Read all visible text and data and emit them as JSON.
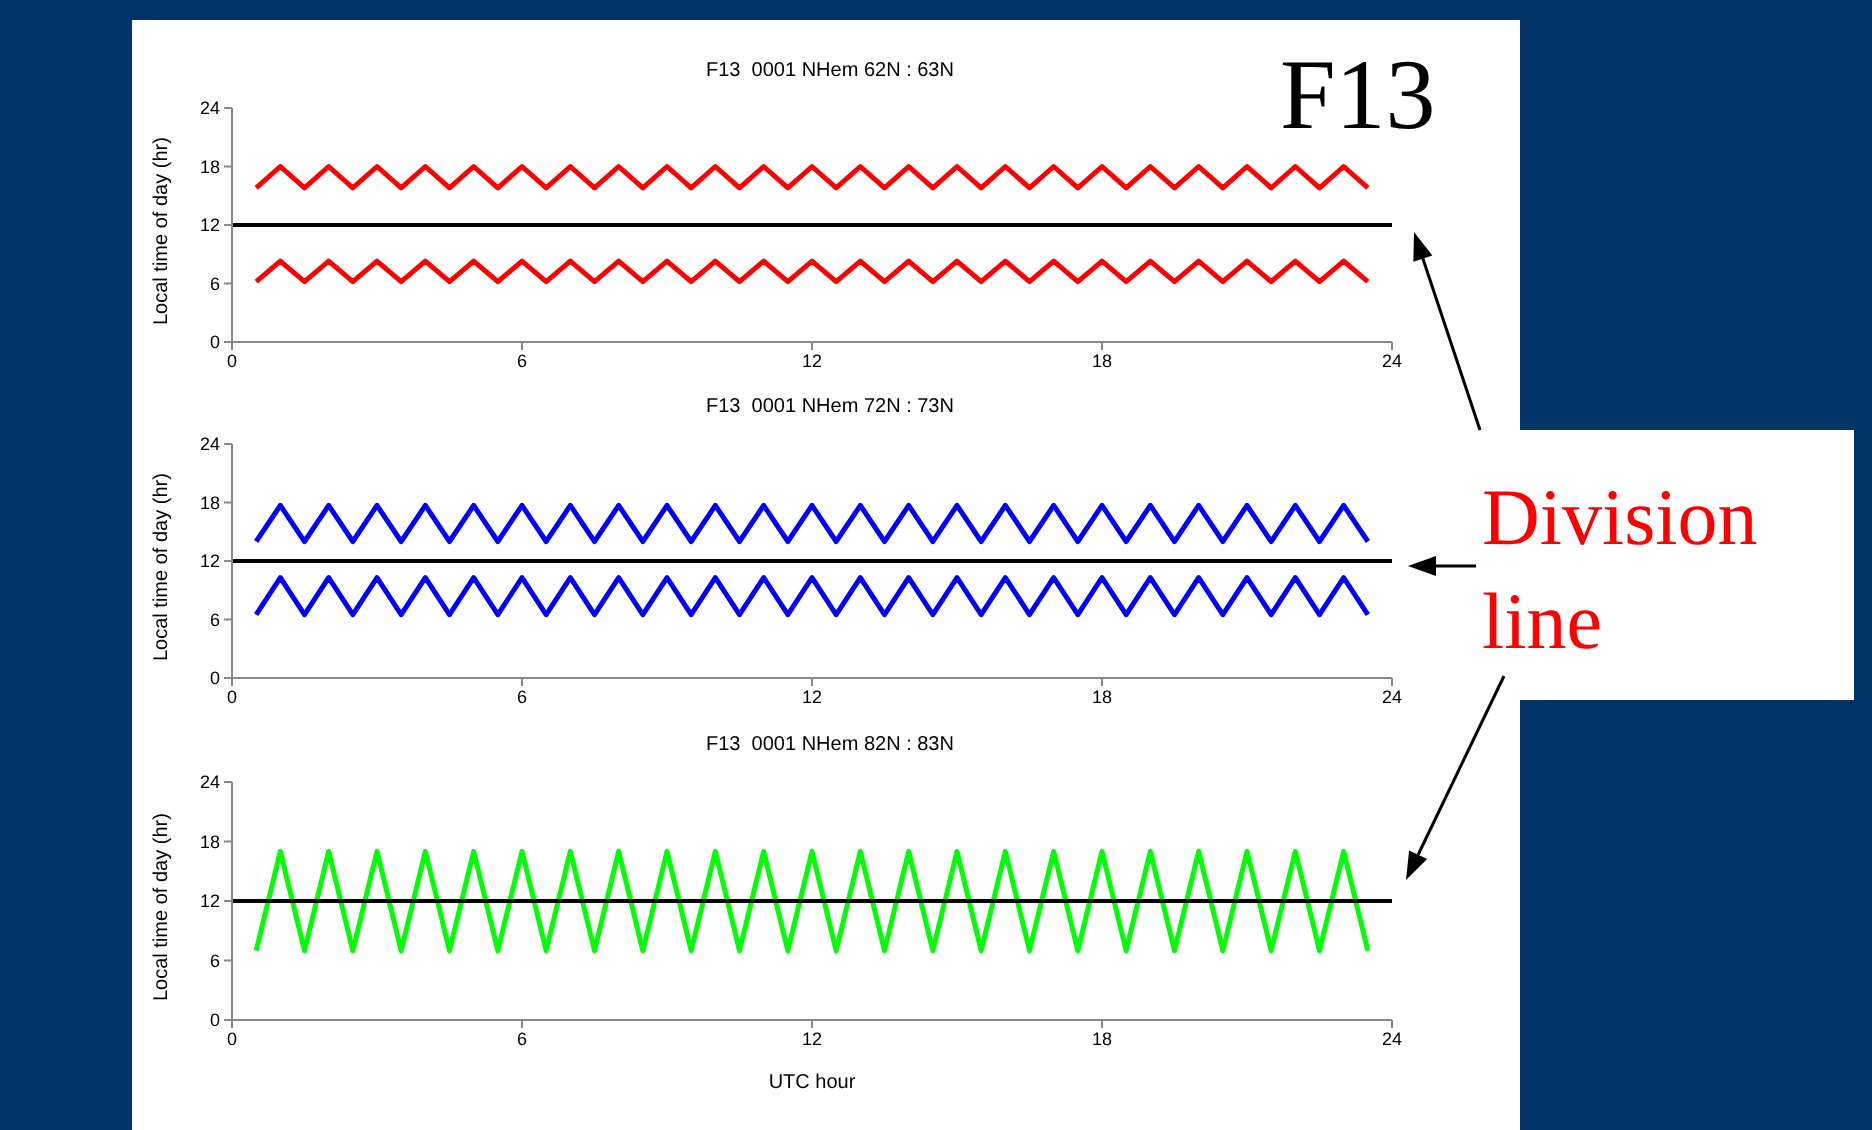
{
  "chart_data": [
    {
      "type": "line",
      "title": "F13  0001 NHem 62N : 63N",
      "ylabel": "Local time of day (hr)",
      "xlim": [
        0,
        24
      ],
      "xticks": [
        0,
        6,
        12,
        18,
        24
      ],
      "ylim": [
        0,
        24
      ],
      "yticks": [
        0,
        6,
        12,
        18,
        24
      ],
      "marker": "none",
      "grid": false,
      "legend": false,
      "x": [
        0.5,
        1,
        1.5,
        2,
        2.5,
        3,
        3.5,
        4,
        4.5,
        5,
        5.5,
        6,
        6.5,
        7,
        7.5,
        8,
        8.5,
        9,
        9.5,
        10,
        10.5,
        11,
        11.5,
        12,
        12.5,
        13,
        13.5,
        14,
        14.5,
        15,
        15.5,
        16,
        16.5,
        17,
        17.5,
        18,
        18.5,
        19,
        19.5,
        20,
        20.5,
        21,
        21.5,
        22,
        22.5,
        23,
        23.5
      ],
      "series": [
        {
          "color": "#ff0000",
          "values": [
            15.8,
            18,
            15.8,
            18,
            15.8,
            18,
            15.8,
            18,
            15.8,
            18,
            15.8,
            18,
            15.8,
            18,
            15.8,
            18,
            15.8,
            18,
            15.8,
            18,
            15.8,
            18,
            15.8,
            18,
            15.8,
            18,
            15.8,
            18,
            15.8,
            18,
            15.8,
            18,
            15.8,
            18,
            15.8,
            18,
            15.8,
            18,
            15.8,
            18,
            15.8,
            18,
            15.8,
            18,
            15.8,
            18,
            15.8
          ]
        },
        {
          "color": "#ff0000",
          "values": [
            6.2,
            8.3,
            6.2,
            8.3,
            6.2,
            8.3,
            6.2,
            8.3,
            6.2,
            8.3,
            6.2,
            8.3,
            6.2,
            8.3,
            6.2,
            8.3,
            6.2,
            8.3,
            6.2,
            8.3,
            6.2,
            8.3,
            6.2,
            8.3,
            6.2,
            8.3,
            6.2,
            8.3,
            6.2,
            8.3,
            6.2,
            8.3,
            6.2,
            8.3,
            6.2,
            8.3,
            6.2,
            8.3,
            6.2,
            8.3,
            6.2,
            8.3,
            6.2,
            8.3,
            6.2,
            8.3,
            6.2
          ]
        }
      ],
      "ref_lines": [
        {
          "axis": "y",
          "value": 12,
          "color": "#000000"
        }
      ],
      "annotations": [
        "F13"
      ]
    },
    {
      "type": "line",
      "title": "F13  0001 NHem 72N : 73N",
      "ylabel": "Local time of day (hr)",
      "xlim": [
        0,
        24
      ],
      "xticks": [
        0,
        6,
        12,
        18,
        24
      ],
      "ylim": [
        0,
        24
      ],
      "yticks": [
        0,
        6,
        12,
        18,
        24
      ],
      "marker": "none",
      "grid": false,
      "legend": false,
      "x": [
        0.5,
        1,
        1.5,
        2,
        2.5,
        3,
        3.5,
        4,
        4.5,
        5,
        5.5,
        6,
        6.5,
        7,
        7.5,
        8,
        8.5,
        9,
        9.5,
        10,
        10.5,
        11,
        11.5,
        12,
        12.5,
        13,
        13.5,
        14,
        14.5,
        15,
        15.5,
        16,
        16.5,
        17,
        17.5,
        18,
        18.5,
        19,
        19.5,
        20,
        20.5,
        21,
        21.5,
        22,
        22.5,
        23,
        23.5
      ],
      "series": [
        {
          "color": "#0000ff",
          "values": [
            14,
            17.7,
            14,
            17.7,
            14,
            17.7,
            14,
            17.7,
            14,
            17.7,
            14,
            17.7,
            14,
            17.7,
            14,
            17.7,
            14,
            17.7,
            14,
            17.7,
            14,
            17.7,
            14,
            17.7,
            14,
            17.7,
            14,
            17.7,
            14,
            17.7,
            14,
            17.7,
            14,
            17.7,
            14,
            17.7,
            14,
            17.7,
            14,
            17.7,
            14,
            17.7,
            14,
            17.7,
            14,
            17.7,
            14
          ]
        },
        {
          "color": "#0000ff",
          "values": [
            6.5,
            10.3,
            6.5,
            10.3,
            6.5,
            10.3,
            6.5,
            10.3,
            6.5,
            10.3,
            6.5,
            10.3,
            6.5,
            10.3,
            6.5,
            10.3,
            6.5,
            10.3,
            6.5,
            10.3,
            6.5,
            10.3,
            6.5,
            10.3,
            6.5,
            10.3,
            6.5,
            10.3,
            6.5,
            10.3,
            6.5,
            10.3,
            6.5,
            10.3,
            6.5,
            10.3,
            6.5,
            10.3,
            6.5,
            10.3,
            6.5,
            10.3,
            6.5,
            10.3,
            6.5,
            10.3,
            6.5
          ]
        }
      ],
      "ref_lines": [
        {
          "axis": "y",
          "value": 12,
          "color": "#000000"
        }
      ],
      "annotations": [
        "Division line"
      ]
    },
    {
      "type": "line",
      "title": "F13  0001 NHem 82N : 83N",
      "xlabel": "UTC hour",
      "ylabel": "Local time of day (hr)",
      "xlim": [
        0,
        24
      ],
      "xticks": [
        0,
        6,
        12,
        18,
        24
      ],
      "ylim": [
        0,
        24
      ],
      "yticks": [
        0,
        6,
        12,
        18,
        24
      ],
      "marker": "none",
      "grid": false,
      "legend": false,
      "x": [
        0.5,
        1,
        1.5,
        2,
        2.5,
        3,
        3.5,
        4,
        4.5,
        5,
        5.5,
        6,
        6.5,
        7,
        7.5,
        8,
        8.5,
        9,
        9.5,
        10,
        10.5,
        11,
        11.5,
        12,
        12.5,
        13,
        13.5,
        14,
        14.5,
        15,
        15.5,
        16,
        16.5,
        17,
        17.5,
        18,
        18.5,
        19,
        19.5,
        20,
        20.5,
        21,
        21.5,
        22,
        22.5,
        23,
        23.5
      ],
      "series": [
        {
          "color": "#00ff00",
          "values": [
            7,
            17,
            7,
            17,
            7,
            17,
            7,
            17,
            7,
            17,
            7,
            17,
            7,
            17,
            7,
            17,
            7,
            17,
            7,
            17,
            7,
            17,
            7,
            17,
            7,
            17,
            7,
            17,
            7,
            17,
            7,
            17,
            7,
            17,
            7,
            17,
            7,
            17,
            7,
            17,
            7,
            17,
            7,
            17,
            7,
            17,
            7
          ]
        }
      ],
      "ref_lines": [
        {
          "axis": "y",
          "value": 12,
          "color": "#000000"
        }
      ]
    }
  ]
}
